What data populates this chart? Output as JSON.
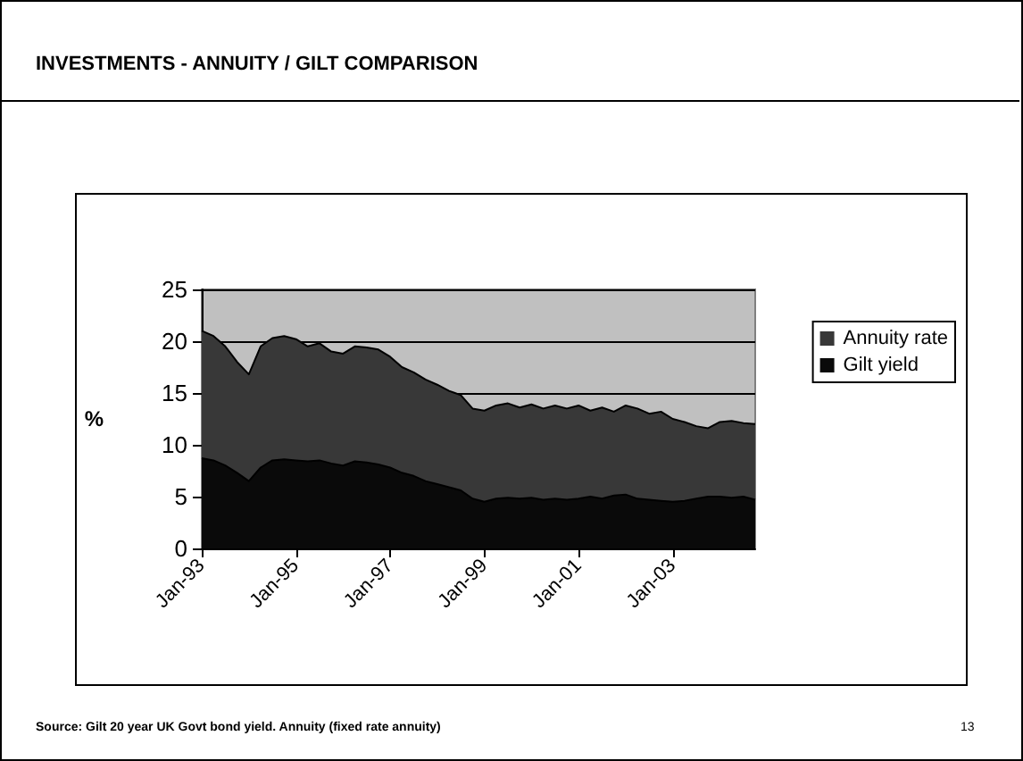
{
  "chart_data": {
    "type": "area",
    "title": "INVESTMENTS - ANNUITY / GILT COMPARISON",
    "ylabel": "%",
    "categories": [
      "Jan-93",
      null,
      null,
      null,
      null,
      null,
      null,
      null,
      "Jan-95",
      null,
      null,
      null,
      null,
      null,
      null,
      null,
      "Jan-97",
      null,
      null,
      null,
      null,
      null,
      null,
      null,
      "Jan-99",
      null,
      null,
      null,
      null,
      null,
      null,
      null,
      "Jan-01",
      null,
      null,
      null,
      null,
      null,
      null,
      null,
      "Jan-03",
      null,
      null,
      null,
      null,
      null,
      null,
      null
    ],
    "series": [
      {
        "name": "Annuity rate",
        "color": "#383838",
        "values": [
          21,
          20.5,
          19.5,
          18,
          16.8,
          19.5,
          20.3,
          20.5,
          20.2,
          19.5,
          19.8,
          19,
          18.8,
          19.5,
          19.4,
          19.2,
          18.5,
          17.5,
          17,
          16.3,
          15.8,
          15.2,
          14.8,
          13.5,
          13.3,
          13.8,
          14,
          13.6,
          13.9,
          13.5,
          13.8,
          13.5,
          13.8,
          13.3,
          13.6,
          13.2,
          13.8,
          13.5,
          13,
          13.2,
          12.5,
          12.2,
          11.8,
          11.6,
          12.2,
          12.3,
          12.1,
          12
        ]
      },
      {
        "name": "Gilt yield",
        "color": "#0a0a0a",
        "values": [
          8.7,
          8.5,
          8,
          7.3,
          6.5,
          7.8,
          8.5,
          8.6,
          8.5,
          8.4,
          8.5,
          8.2,
          8,
          8.4,
          8.3,
          8.1,
          7.8,
          7.3,
          7,
          6.5,
          6.2,
          5.9,
          5.6,
          4.8,
          4.5,
          4.8,
          4.9,
          4.8,
          4.9,
          4.7,
          4.8,
          4.7,
          4.8,
          5,
          4.8,
          5.1,
          5.2,
          4.8,
          4.7,
          4.6,
          4.5,
          4.6,
          4.8,
          5,
          5,
          4.9,
          5,
          4.7
        ]
      }
    ],
    "ylim": [
      0,
      25
    ],
    "yticks": [
      0,
      5,
      10,
      15,
      20,
      25
    ],
    "grid": "y",
    "legend": "right",
    "annotations": [
      "Source: Gilt 20 year UK Govt bond yield.  Annuity (fixed rate annuity)",
      "13"
    ]
  }
}
